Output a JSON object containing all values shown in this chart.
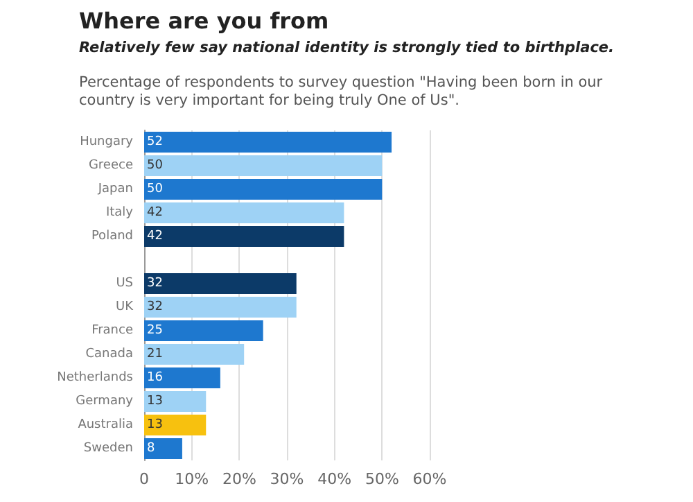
{
  "chart_data": {
    "type": "bar",
    "orientation": "horizontal",
    "title": "Where are you from",
    "subtitle": "Relatively few say national identity is strongly tied to birthplace.",
    "annotations": [
      "Percentage of respondents to survey question \"Having been born in our\ncountry is very important for being truly One of Us\"."
    ],
    "categories": [
      "Hungary",
      "Greece",
      "Japan",
      "Italy",
      "Poland",
      null,
      "US",
      "UK",
      "France",
      "Canada",
      "Netherlands",
      "Germany",
      "Australia",
      "Sweden"
    ],
    "values": [
      52,
      50,
      50,
      42,
      42,
      null,
      32,
      32,
      25,
      21,
      16,
      13,
      13,
      8
    ],
    "colors": [
      "#1e78cf",
      "#9ed2f5",
      "#1e78cf",
      "#9ed2f5",
      "#0c3a68",
      "#0c3a68",
      "#0c3a68",
      "#9ed2f5",
      "#1e78cf",
      "#9ed2f5",
      "#1e78cf",
      "#9ed2f5",
      "#f7c10f",
      "#1e78cf"
    ],
    "xlim": [
      0,
      60
    ],
    "xticks": [
      {
        "value": 0,
        "label": "0"
      },
      {
        "value": 10,
        "label": "10%"
      },
      {
        "value": 20,
        "label": "20%"
      },
      {
        "value": 30,
        "label": "30%"
      },
      {
        "value": 40,
        "label": "40%"
      },
      {
        "value": 50,
        "label": "50%"
      },
      {
        "value": 60,
        "label": "60%"
      }
    ],
    "grid": "x",
    "data_labels": true
  }
}
